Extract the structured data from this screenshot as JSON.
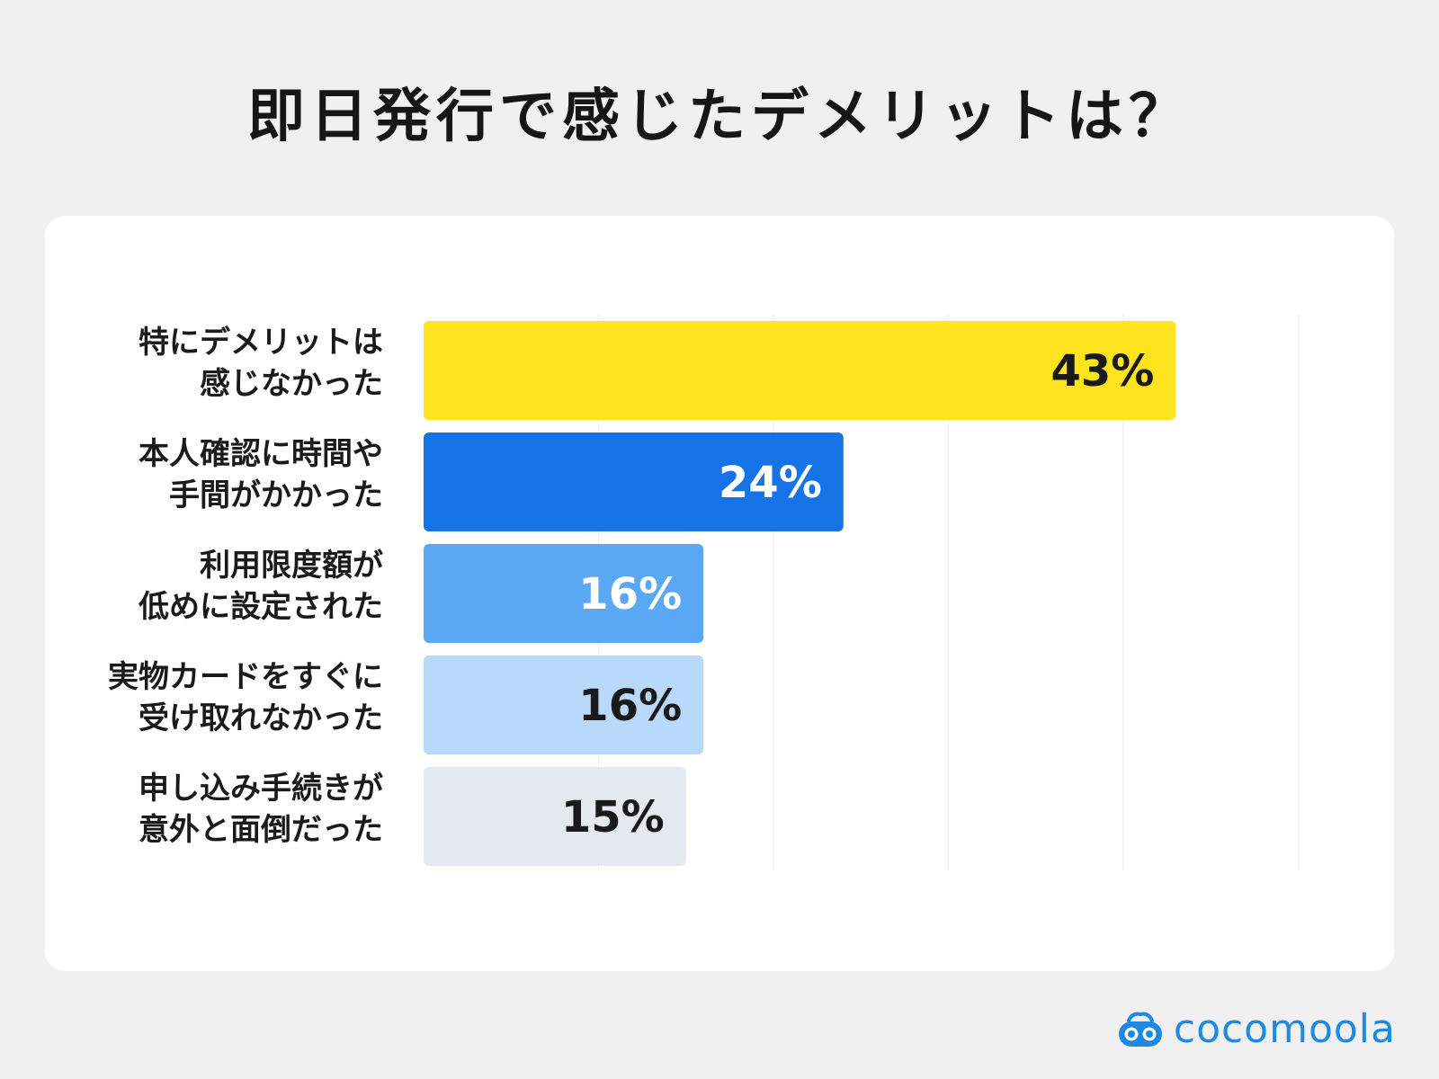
{
  "title": "即日発行で感じたデメリットは？",
  "logo": {
    "text": "cocomoola"
  },
  "chart_data": {
    "type": "bar",
    "orientation": "horizontal",
    "unit": "%",
    "xlim": [
      0,
      50
    ],
    "grid": true,
    "categories": [
      [
        "特にデメリットは",
        "感じなかった"
      ],
      [
        "本人確認に時間や",
        "手間がかかった"
      ],
      [
        "利用限度額が",
        "低めに設定された"
      ],
      [
        "実物カードをすぐに",
        "受け取れなかった"
      ],
      [
        "申し込み手続きが",
        "意外と面倒だった"
      ]
    ],
    "values": [
      43,
      24,
      16,
      16,
      15
    ],
    "value_labels": [
      "43%",
      "24%",
      "16%",
      "16%",
      "15%"
    ],
    "bar_colors": [
      "#ffe41f",
      "#1673e6",
      "#5aa8f3",
      "#b9d9fa",
      "#e4e9f0"
    ],
    "label_colors": [
      "#1a1a1a",
      "#ffffff",
      "#ffffff",
      "#1a1a1a",
      "#1a1a1a"
    ]
  }
}
